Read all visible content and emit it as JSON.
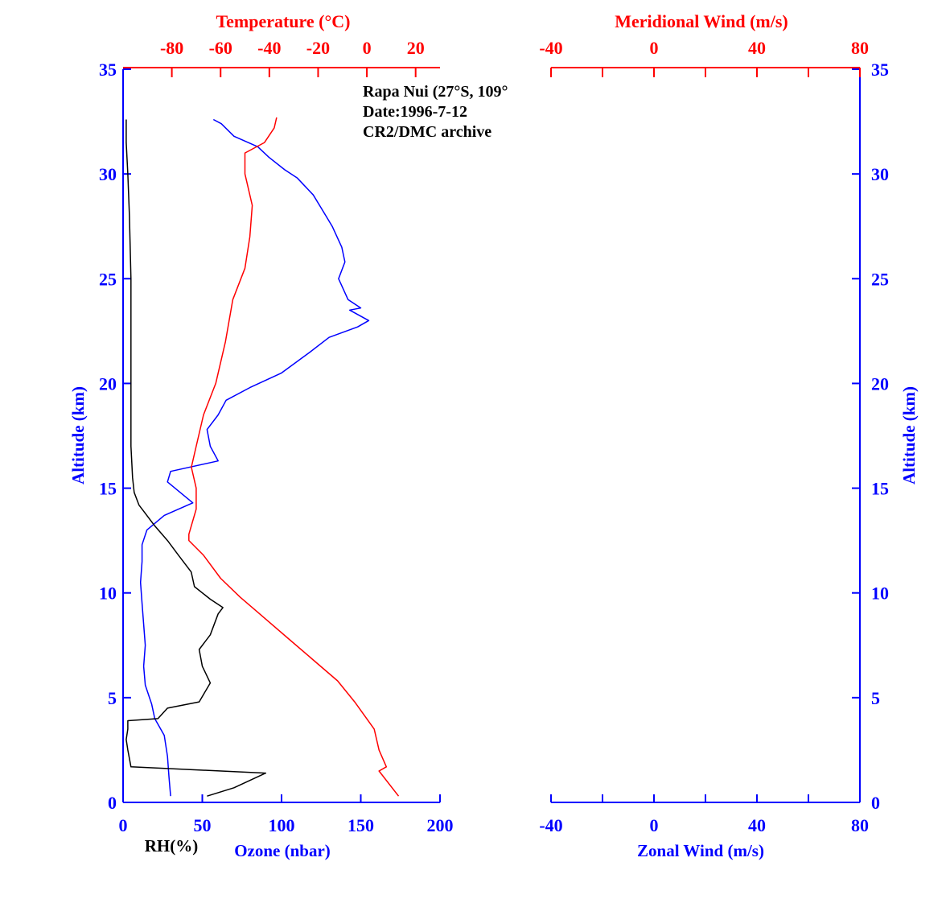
{
  "colors": {
    "blue": "#0000ff",
    "red": "#ff0000",
    "black": "#000000"
  },
  "annotation": [
    "Rapa Nui (27°S, 109°",
    "Date:1996-7-12",
    "CR2/DMC archive"
  ],
  "chart_data": [
    {
      "type": "line",
      "panel": "left",
      "title": "",
      "axes": {
        "y": {
          "label": "Altitude (km)",
          "range": [
            0,
            35
          ],
          "ticks": [
            0,
            5,
            10,
            15,
            20,
            25,
            30,
            35
          ]
        },
        "x_bottom": {
          "label": "Ozone (nbar)",
          "range": [
            0,
            200
          ],
          "ticks": [
            0,
            50,
            100,
            150,
            200
          ]
        },
        "x_bottom_secondary_label": "RH(%)",
        "x_top": {
          "label": "Temperature (°C)",
          "range": [
            -100,
            30
          ],
          "ticks": [
            -80,
            -60,
            -40,
            -20,
            0,
            20
          ]
        }
      },
      "series": [
        {
          "name": "Ozone (nbar)",
          "axis": "x_bottom",
          "color": "#0000ff",
          "points": [
            [
              30,
              0.3
            ],
            [
              29,
              1.2
            ],
            [
              28,
              2.2
            ],
            [
              26,
              3.2
            ],
            [
              20,
              4.0
            ],
            [
              18,
              4.7
            ],
            [
              14,
              5.6
            ],
            [
              13,
              6.5
            ],
            [
              14,
              7.5
            ],
            [
              13,
              8.5
            ],
            [
              12,
              9.5
            ],
            [
              11,
              10.5
            ],
            [
              12,
              11.5
            ],
            [
              12,
              12.3
            ],
            [
              15,
              13.0
            ],
            [
              26,
              13.7
            ],
            [
              44,
              14.3
            ],
            [
              28,
              15.3
            ],
            [
              30,
              15.8
            ],
            [
              60,
              16.3
            ],
            [
              55,
              17.0
            ],
            [
              53,
              17.8
            ],
            [
              60,
              18.5
            ],
            [
              65,
              19.2
            ],
            [
              80,
              19.8
            ],
            [
              100,
              20.5
            ],
            [
              118,
              21.5
            ],
            [
              130,
              22.2
            ],
            [
              148,
              22.7
            ],
            [
              155,
              23.0
            ],
            [
              143,
              23.5
            ],
            [
              150,
              23.6
            ],
            [
              142,
              24.0
            ],
            [
              136,
              25.0
            ],
            [
              140,
              25.8
            ],
            [
              138,
              26.5
            ],
            [
              132,
              27.5
            ],
            [
              128,
              28.0
            ],
            [
              120,
              29.0
            ],
            [
              110,
              29.8
            ],
            [
              102,
              30.2
            ],
            [
              92,
              30.8
            ],
            [
              85,
              31.3
            ],
            [
              70,
              31.8
            ],
            [
              62,
              32.4
            ],
            [
              57,
              32.6
            ]
          ]
        },
        {
          "name": "RH(%)",
          "axis": "x_bottom",
          "color": "#000000",
          "points": [
            [
              53,
              0.3
            ],
            [
              70,
              0.7
            ],
            [
              90,
              1.4
            ],
            [
              5,
              1.7
            ],
            [
              3,
              2.5
            ],
            [
              2,
              3.0
            ],
            [
              3,
              3.5
            ],
            [
              3,
              3.9
            ],
            [
              22,
              4.0
            ],
            [
              28,
              4.5
            ],
            [
              48,
              4.8
            ],
            [
              55,
              5.7
            ],
            [
              50,
              6.5
            ],
            [
              48,
              7.3
            ],
            [
              55,
              8.0
            ],
            [
              60,
              9.0
            ],
            [
              63,
              9.3
            ],
            [
              55,
              9.7
            ],
            [
              45,
              10.3
            ],
            [
              43,
              11.0
            ],
            [
              35,
              11.8
            ],
            [
              28,
              12.5
            ],
            [
              20,
              13.2
            ],
            [
              10,
              14.2
            ],
            [
              7,
              14.8
            ],
            [
              6,
              15.5
            ],
            [
              5,
              17.0
            ],
            [
              5,
              20.0
            ],
            [
              5,
              25.0
            ],
            [
              4,
              28.0
            ],
            [
              3,
              30.0
            ],
            [
              2,
              31.5
            ],
            [
              2,
              32.6
            ]
          ]
        },
        {
          "name": "Temperature (°C)",
          "axis": "x_top",
          "color": "#ff0000",
          "points": [
            [
              13,
              0.3
            ],
            [
              5,
              1.5
            ],
            [
              8,
              1.7
            ],
            [
              5,
              2.5
            ],
            [
              3,
              3.5
            ],
            [
              -5,
              4.8
            ],
            [
              -12,
              5.8
            ],
            [
              -22,
              6.8
            ],
            [
              -32,
              7.8
            ],
            [
              -42,
              8.8
            ],
            [
              -52,
              9.8
            ],
            [
              -60,
              10.7
            ],
            [
              -67,
              11.8
            ],
            [
              -73,
              12.5
            ],
            [
              -73,
              12.8
            ],
            [
              -70,
              14.0
            ],
            [
              -70,
              15.0
            ],
            [
              -72,
              16.0
            ],
            [
              -70,
              17.0
            ],
            [
              -67,
              18.5
            ],
            [
              -62,
              20.0
            ],
            [
              -58,
              22.0
            ],
            [
              -55,
              24.0
            ],
            [
              -50,
              25.5
            ],
            [
              -48,
              27.0
            ],
            [
              -47,
              28.5
            ],
            [
              -50,
              30.0
            ],
            [
              -50,
              31.0
            ],
            [
              -42,
              31.5
            ],
            [
              -38,
              32.2
            ],
            [
              -37,
              32.7
            ]
          ]
        }
      ]
    },
    {
      "type": "line",
      "panel": "right",
      "title": "",
      "axes": {
        "y": {
          "label": "Altitude (km)",
          "range": [
            0,
            35
          ],
          "ticks": [
            0,
            5,
            10,
            15,
            20,
            25,
            30,
            35
          ]
        },
        "x_bottom": {
          "label": "Zonal Wind (m/s)",
          "range": [
            -40,
            80
          ],
          "ticks": [
            -40,
            0,
            40,
            80
          ]
        },
        "x_top": {
          "label": "Meridional Wind (m/s)",
          "range": [
            -40,
            80
          ],
          "ticks": [
            -40,
            0,
            40,
            80
          ]
        }
      },
      "series": []
    }
  ]
}
